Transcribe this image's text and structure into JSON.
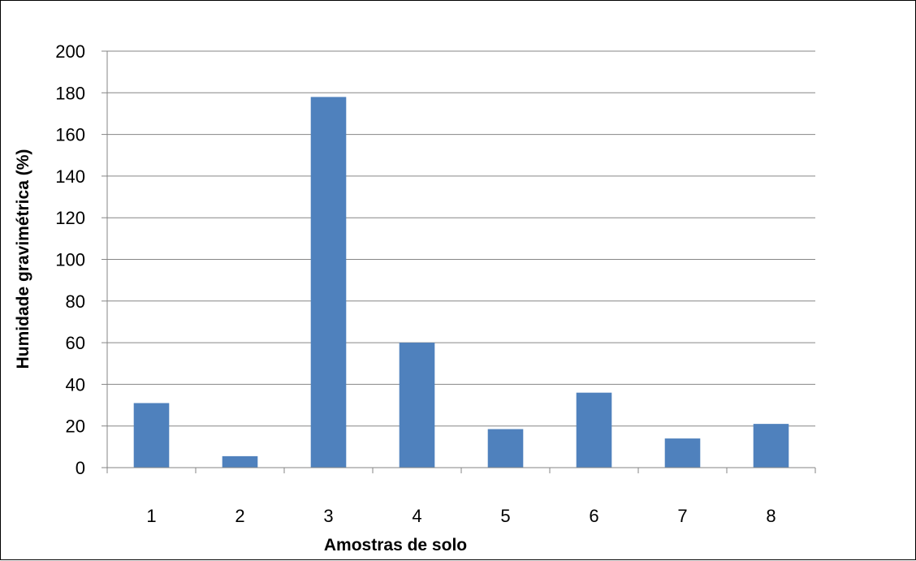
{
  "chart_data": {
    "type": "bar",
    "title": "",
    "xlabel": "Amostras de solo",
    "ylabel": "Humidade gravimétrica (%)",
    "categories": [
      "1",
      "2",
      "3",
      "4",
      "5",
      "6",
      "7",
      "8"
    ],
    "values": [
      31,
      5.5,
      178,
      60,
      18.5,
      36,
      14,
      21
    ],
    "ylim": [
      0,
      200
    ],
    "yticks": [
      "0",
      "20",
      "40",
      "60",
      "80",
      "100",
      "120",
      "140",
      "160",
      "180",
      "200"
    ],
    "grid": true,
    "legend": "none",
    "colors": {
      "bar": "#4f81bd",
      "grid": "#868686",
      "axis": "#868686"
    }
  }
}
